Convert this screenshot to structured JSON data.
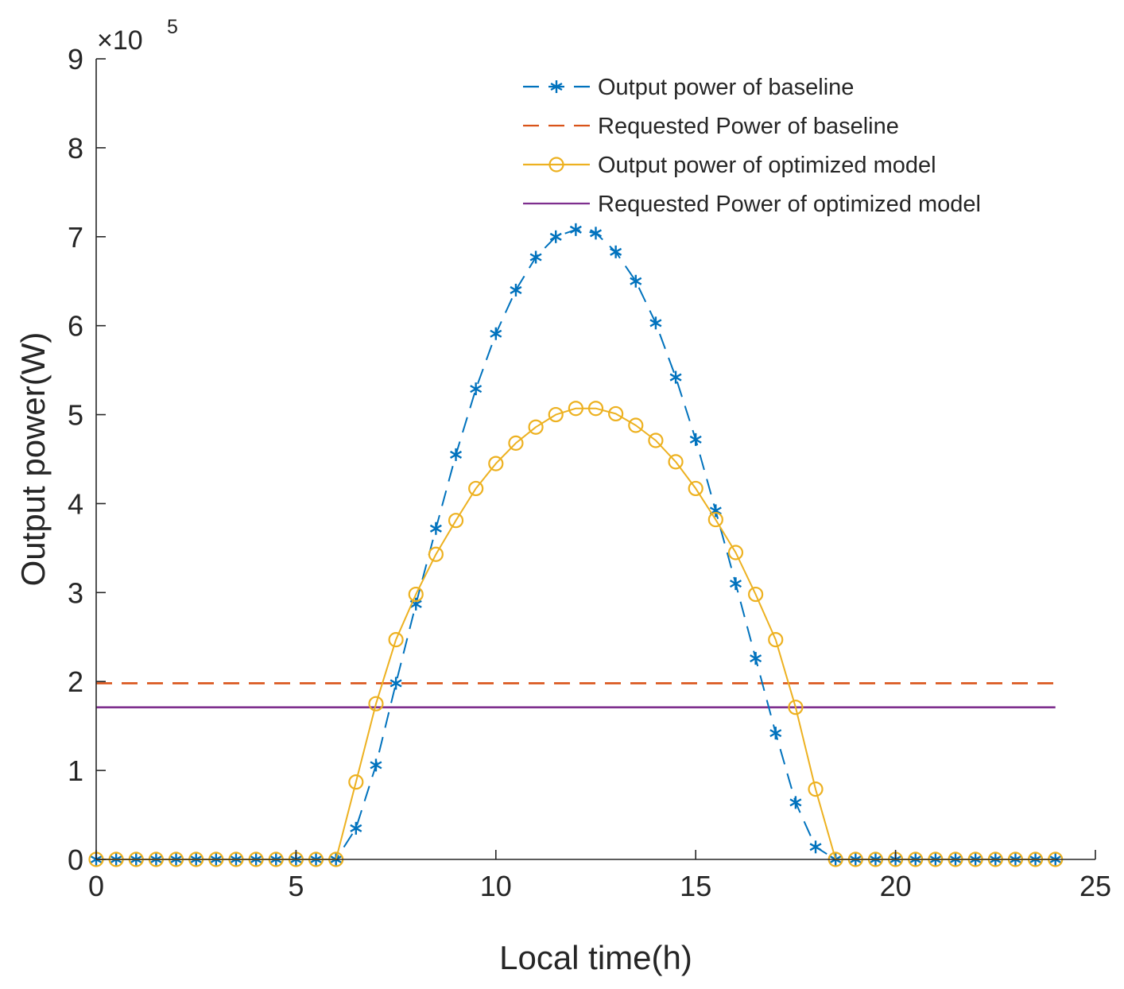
{
  "chart_data": {
    "type": "line",
    "xlabel": "Local time(h)",
    "ylabel": "Output power(W)",
    "y_multiplier": {
      "base": "×10",
      "exponent": "5"
    },
    "xlim": [
      0,
      25
    ],
    "ylim": [
      0,
      9
    ],
    "x_ticks": [
      0,
      5,
      10,
      15,
      20,
      25
    ],
    "x_tick_labels": [
      "0",
      "5",
      "10",
      "15",
      "20",
      "25"
    ],
    "y_ticks": [
      0,
      1,
      2,
      3,
      4,
      5,
      6,
      7,
      8,
      9
    ],
    "y_tick_labels": [
      "0",
      "1",
      "2",
      "3",
      "4",
      "5",
      "6",
      "7",
      "8",
      "9"
    ],
    "legend_position": "top-right",
    "x": [
      0,
      0.5,
      1,
      1.5,
      2,
      2.5,
      3,
      3.5,
      4,
      4.5,
      5,
      5.5,
      6,
      6.5,
      7,
      7.5,
      8,
      8.5,
      9,
      9.5,
      10,
      10.5,
      11,
      11.5,
      12,
      12.5,
      13,
      13.5,
      14,
      14.5,
      15,
      15.5,
      16,
      16.5,
      17,
      17.5,
      18,
      18.5,
      19,
      19.5,
      20,
      20.5,
      21,
      21.5,
      22,
      22.5,
      23,
      23.5,
      24
    ],
    "series": [
      {
        "name": "Output power of baseline",
        "color": "#0072BD",
        "style": "dashed",
        "marker": "asterisk",
        "values": [
          0,
          0,
          0,
          0,
          0,
          0,
          0,
          0,
          0,
          0,
          0,
          0,
          0,
          0.35,
          1.06,
          1.98,
          2.87,
          3.72,
          4.55,
          5.29,
          5.91,
          6.4,
          6.77,
          7.0,
          7.08,
          7.04,
          6.83,
          6.5,
          6.03,
          5.42,
          4.72,
          3.92,
          3.1,
          2.26,
          1.42,
          0.64,
          0.14,
          0,
          0,
          0,
          0,
          0,
          0,
          0,
          0,
          0,
          0,
          0,
          0
        ]
      },
      {
        "name": "Requested Power of baseline",
        "color": "#D95319",
        "style": "dashed",
        "marker": "none",
        "constant": 1.98
      },
      {
        "name": "Output power of optimized model",
        "color": "#EDB120",
        "style": "solid",
        "marker": "circle",
        "values": [
          0,
          0,
          0,
          0,
          0,
          0,
          0,
          0,
          0,
          0,
          0,
          0,
          0,
          0.87,
          1.75,
          2.47,
          2.98,
          3.43,
          3.81,
          4.17,
          4.45,
          4.68,
          4.86,
          5.0,
          5.07,
          5.07,
          5.01,
          4.88,
          4.71,
          4.47,
          4.17,
          3.82,
          3.45,
          2.98,
          2.47,
          1.71,
          0.79,
          0,
          0,
          0,
          0,
          0,
          0,
          0,
          0,
          0,
          0,
          0,
          0
        ]
      },
      {
        "name": "Requested Power of optimized model",
        "color": "#7E2F8E",
        "style": "solid",
        "marker": "none",
        "constant": 1.71
      }
    ]
  }
}
